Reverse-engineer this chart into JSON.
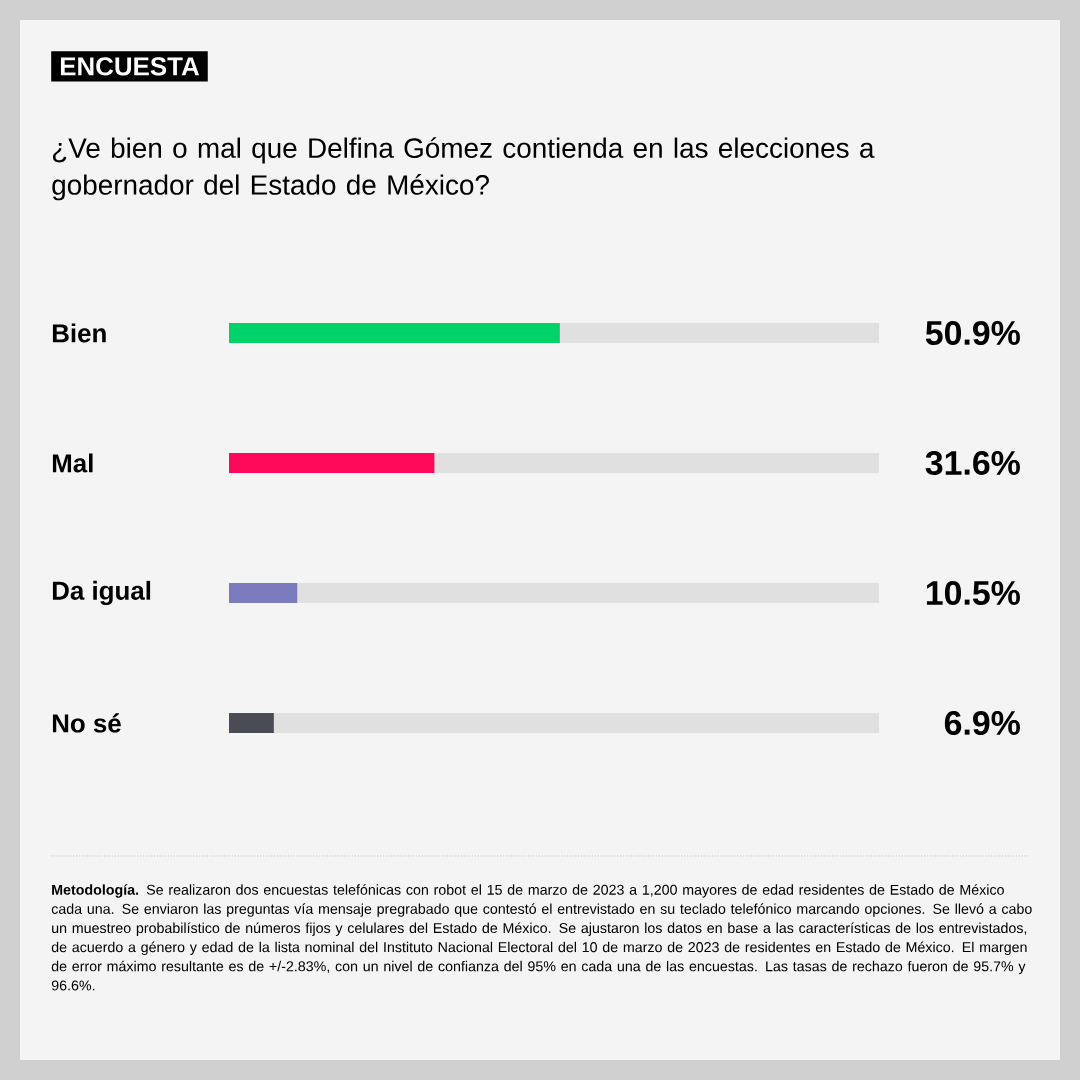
{
  "chart_data": {
    "type": "bar",
    "orientation": "horizontal",
    "title": "ENCUESTA",
    "subtitle": "¿Ve bien o mal que Delfina Gómez contienda en las elecciones a gobernador del Estado de México?",
    "categories": [
      "Bien",
      "Mal",
      "Da igual",
      "No sé"
    ],
    "values": [
      50.9,
      31.6,
      10.5,
      6.9
    ],
    "value_labels": [
      "50.9%",
      "31.6%",
      "10.5%",
      "6.9%"
    ],
    "colors": [
      "#00d26a",
      "#ff0a5a",
      "#7b7bbd",
      "#4a4c55"
    ],
    "xlim": [
      0,
      100
    ],
    "annotations": [
      "**Metodología.** Se realizaron dos encuestas telefónicas con robot el 15 de marzo de 2023 a 1,200 mayores de edad residentes de Estado de México cada una. Se enviaron las preguntas vía mensaje pregrabado que contestó el entrevistado en su teclado telefónico marcando opciones. Se llevó a cabo un muestreo probabilístico de números fijos y celulares del Estado de México. Se ajustaron los datos en base a las características de los entrevistados, de acuerdo a género y edad de la lista nominal del Instituto Nacional Electoral del 10 de marzo de 2023 de residentes en Estado de México. El margen de error máximo resultante es de +/-2.83%, con un nivel de confianza del 95% en cada una de las encuestas. Las tasas de rechazo fueron de 95.7% y 96.6%."
    ]
  }
}
